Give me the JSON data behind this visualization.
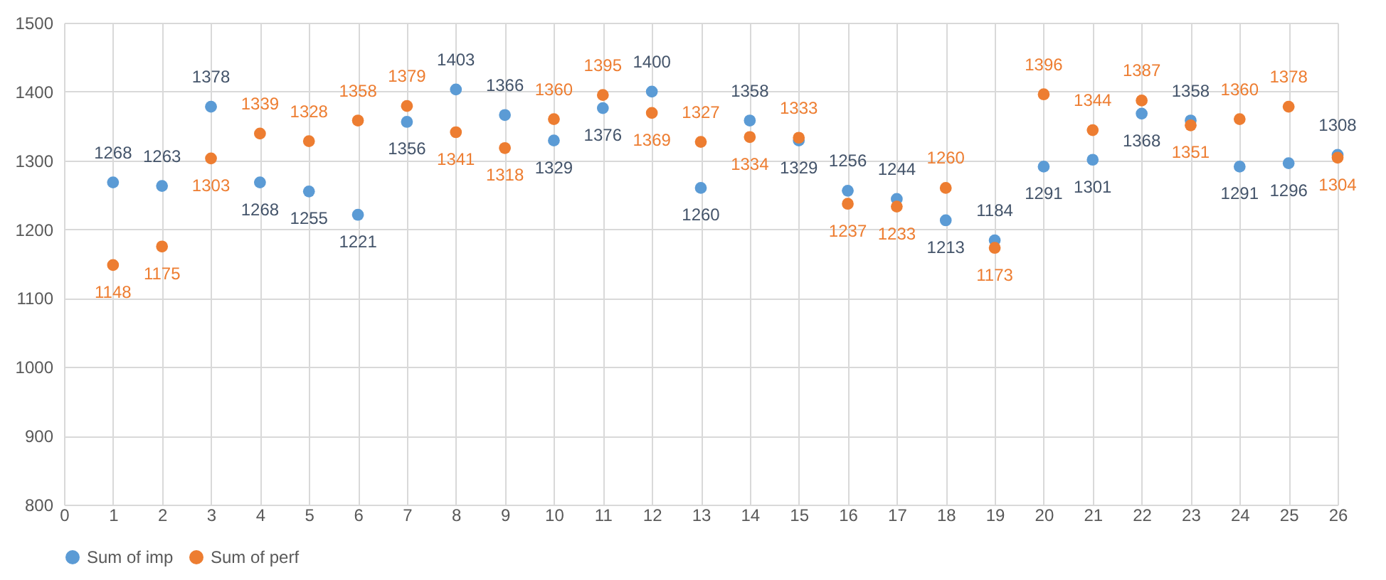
{
  "chart_data": {
    "type": "scatter",
    "x": [
      1,
      2,
      3,
      4,
      5,
      6,
      7,
      8,
      9,
      10,
      11,
      12,
      13,
      14,
      15,
      16,
      17,
      18,
      19,
      20,
      21,
      22,
      23,
      24,
      25,
      26
    ],
    "series": [
      {
        "name": "Sum of imp",
        "color": "#5b9bd5",
        "values": [
          1268,
          1263,
          1378,
          1268,
          1255,
          1221,
          1356,
          1403,
          1366,
          1329,
          1376,
          1400,
          1260,
          1358,
          1329,
          1256,
          1244,
          1213,
          1184,
          1291,
          1301,
          1368,
          1358,
          1291,
          1296,
          1308
        ]
      },
      {
        "name": "Sum of perf",
        "color": "#ed7d31",
        "values": [
          1148,
          1175,
          1303,
          1339,
          1328,
          1358,
          1379,
          1341,
          1318,
          1360,
          1395,
          1369,
          1327,
          1334,
          1333,
          1237,
          1233,
          1260,
          1173,
          1396,
          1344,
          1387,
          1351,
          1360,
          1378,
          1304
        ]
      }
    ],
    "xlim": [
      0,
      26
    ],
    "xticks": [
      0,
      1,
      2,
      3,
      4,
      5,
      6,
      7,
      8,
      9,
      10,
      11,
      12,
      13,
      14,
      15,
      16,
      17,
      18,
      19,
      20,
      21,
      22,
      23,
      24,
      25,
      26
    ],
    "ylim": [
      800,
      1500
    ],
    "yticks": [
      800,
      900,
      1000,
      1100,
      1200,
      1300,
      1400,
      1500
    ],
    "grid": true,
    "legend": "bottom",
    "marker": "circle",
    "data_labels": true
  }
}
